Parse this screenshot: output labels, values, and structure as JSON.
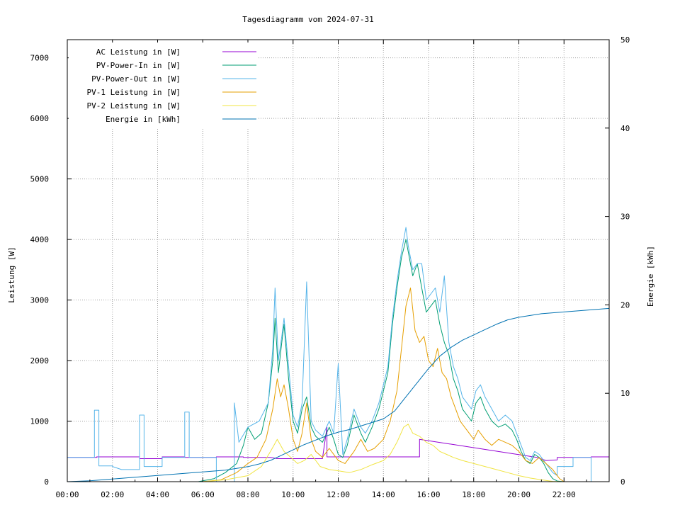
{
  "chart_data": {
    "type": "line",
    "title": "Tagesdiagramm vom 2024-07-31",
    "ylabel": "Leistung [W]",
    "y2label": "Energie [kWh]",
    "xlabel": "",
    "xlim": [
      0,
      24
    ],
    "ylim": [
      0,
      7300
    ],
    "y2lim": [
      0,
      50
    ],
    "grid": true,
    "legend_position": "top-left",
    "x_ticks": [
      "00:00",
      "02:00",
      "04:00",
      "06:00",
      "08:00",
      "10:00",
      "12:00",
      "14:00",
      "16:00",
      "18:00",
      "20:00",
      "22:00"
    ],
    "y_ticks": [
      "0",
      "1000",
      "2000",
      "3000",
      "4000",
      "5000",
      "6000",
      "7000"
    ],
    "y2_ticks": [
      "0",
      "10",
      "20",
      "30",
      "40",
      "50"
    ],
    "series": [
      {
        "name": "AC Leistung in [W]",
        "color": "#9400d3",
        "axis": "y",
        "x": [
          0,
          1.3,
          1.3,
          3.2,
          3.2,
          4.2,
          4.2,
          5.2,
          5.2,
          6.6,
          6.6,
          7.8,
          7.8,
          9.0,
          9.3,
          11.3,
          11.5,
          11.5,
          15.6,
          15.6,
          20.8,
          21.2,
          21.7,
          21.7,
          23.2,
          23.2,
          24
        ],
        "y": [
          400,
          400,
          410,
          410,
          380,
          380,
          410,
          410,
          400,
          400,
          410,
          410,
          400,
          400,
          380,
          380,
          900,
          410,
          410,
          700,
          400,
          350,
          360,
          400,
          400,
          410,
          410
        ]
      },
      {
        "name": "PV-Power-In in [W]",
        "color": "#009e73",
        "axis": "y",
        "x": [
          0,
          5.8,
          6.5,
          7.0,
          7.5,
          7.8,
          8.0,
          8.3,
          8.6,
          8.9,
          9.1,
          9.2,
          9.35,
          9.5,
          9.6,
          9.8,
          10.0,
          10.2,
          10.4,
          10.6,
          10.8,
          11.0,
          11.3,
          11.6,
          11.8,
          12.0,
          12.2,
          12.4,
          12.7,
          13.0,
          13.2,
          13.5,
          13.8,
          14.0,
          14.2,
          14.4,
          14.6,
          14.8,
          15.0,
          15.1,
          15.3,
          15.5,
          15.7,
          15.9,
          16.1,
          16.3,
          16.5,
          16.7,
          16.9,
          17.1,
          17.3,
          17.5,
          17.7,
          17.9,
          18.1,
          18.3,
          18.5,
          18.8,
          19.1,
          19.4,
          19.7,
          19.9,
          20.1,
          20.3,
          20.5,
          20.7,
          20.9,
          21.1,
          21.3,
          21.5,
          21.7,
          22.0
        ],
        "y": [
          0,
          0,
          50,
          150,
          300,
          600,
          900,
          700,
          800,
          1300,
          2000,
          2700,
          1800,
          2300,
          2600,
          1700,
          1000,
          800,
          1200,
          1400,
          900,
          750,
          650,
          900,
          700,
          450,
          400,
          600,
          1100,
          800,
          650,
          900,
          1200,
          1500,
          1800,
          2600,
          3200,
          3700,
          4000,
          3800,
          3400,
          3600,
          3200,
          2800,
          2900,
          3000,
          2600,
          2300,
          2100,
          1700,
          1500,
          1200,
          1100,
          1000,
          1300,
          1400,
          1200,
          1000,
          900,
          950,
          850,
          700,
          500,
          350,
          300,
          450,
          400,
          300,
          150,
          50,
          10,
          0
        ]
      },
      {
        "name": "PV-Power-Out in [W]",
        "color": "#56b4e9",
        "axis": "y",
        "x": [
          0,
          1.2,
          1.2,
          1.4,
          1.4,
          2.0,
          2.0,
          2.4,
          3.2,
          3.2,
          3.4,
          3.4,
          4.2,
          4.2,
          5.2,
          5.2,
          5.4,
          5.4,
          6.6,
          6.6,
          7.4,
          7.4,
          7.6,
          8.0,
          8.5,
          8.9,
          9.1,
          9.2,
          9.35,
          9.5,
          9.6,
          9.8,
          10.0,
          10.2,
          10.4,
          10.6,
          10.8,
          11.0,
          11.3,
          11.6,
          11.8,
          12.0,
          12.2,
          12.4,
          12.7,
          13.0,
          13.2,
          13.5,
          13.8,
          14.0,
          14.2,
          14.4,
          14.6,
          14.8,
          15.0,
          15.1,
          15.3,
          15.5,
          15.7,
          15.9,
          16.1,
          16.3,
          16.5,
          16.7,
          16.9,
          17.1,
          17.3,
          17.5,
          17.7,
          17.9,
          18.1,
          18.3,
          18.5,
          18.8,
          19.1,
          19.4,
          19.7,
          19.9,
          20.1,
          20.3,
          20.5,
          20.7,
          20.9,
          21.1,
          21.3,
          21.5,
          21.7,
          21.7,
          22.4,
          22.4,
          23.2,
          23.2,
          24
        ],
        "y": [
          400,
          400,
          1180,
          1180,
          260,
          260,
          250,
          200,
          200,
          1100,
          1100,
          250,
          250,
          400,
          400,
          1150,
          1150,
          400,
          400,
          0,
          0,
          1300,
          650,
          900,
          1000,
          1300,
          2200,
          3200,
          2000,
          2400,
          2700,
          1900,
          1100,
          900,
          1300,
          3300,
          1000,
          850,
          750,
          1000,
          800,
          1950,
          450,
          700,
          1200,
          900,
          800,
          1000,
          1300,
          1600,
          1900,
          2700,
          3300,
          3800,
          4200,
          3900,
          3500,
          3600,
          3600,
          3000,
          3100,
          3200,
          2800,
          3400,
          2300,
          1900,
          1700,
          1400,
          1300,
          1200,
          1500,
          1600,
          1400,
          1200,
          1000,
          1100,
          1000,
          800,
          600,
          400,
          350,
          500,
          450,
          350,
          250,
          150,
          100,
          250,
          250,
          400,
          400,
          0,
          0
        ]
      },
      {
        "name": "PV-1 Leistung in [W]",
        "color": "#e69f00",
        "axis": "y",
        "x": [
          0,
          6.0,
          6.8,
          7.5,
          8.0,
          8.4,
          8.8,
          9.1,
          9.3,
          9.45,
          9.6,
          9.8,
          10.0,
          10.2,
          10.4,
          10.6,
          10.8,
          11.0,
          11.3,
          11.6,
          12.0,
          12.3,
          12.7,
          13.0,
          13.3,
          13.6,
          14.0,
          14.3,
          14.6,
          14.8,
          15.0,
          15.2,
          15.4,
          15.6,
          15.8,
          16.0,
          16.2,
          16.4,
          16.6,
          16.8,
          17.0,
          17.2,
          17.4,
          17.6,
          17.8,
          18.0,
          18.2,
          18.5,
          18.8,
          19.1,
          19.4,
          19.7,
          20.0,
          20.3,
          20.6,
          20.9,
          21.2,
          21.5,
          21.8,
          22.0
        ],
        "y": [
          0,
          0,
          30,
          150,
          300,
          400,
          700,
          1200,
          1700,
          1400,
          1600,
          1200,
          700,
          500,
          800,
          1300,
          700,
          500,
          400,
          550,
          350,
          300,
          500,
          700,
          500,
          550,
          700,
          1000,
          1500,
          2200,
          2900,
          3200,
          2500,
          2300,
          2400,
          2000,
          1900,
          2200,
          1800,
          1700,
          1400,
          1200,
          1000,
          900,
          800,
          700,
          850,
          700,
          600,
          700,
          650,
          600,
          500,
          350,
          300,
          400,
          300,
          200,
          50,
          0
        ]
      },
      {
        "name": "PV-2 Leistung in [W]",
        "color": "#f0e442",
        "axis": "y",
        "x": [
          0,
          6.0,
          7.0,
          8.0,
          8.6,
          9.0,
          9.3,
          9.6,
          9.9,
          10.2,
          10.5,
          10.8,
          11.2,
          11.6,
          12.0,
          12.5,
          13.0,
          13.5,
          14.0,
          14.3,
          14.6,
          14.9,
          15.1,
          15.3,
          15.6,
          15.9,
          16.2,
          16.5,
          16.8,
          17.1,
          17.5,
          18.0,
          18.5,
          19.0,
          19.5,
          20.0,
          20.5,
          21.0,
          21.5,
          22.0
        ],
        "y": [
          0,
          0,
          30,
          100,
          250,
          500,
          700,
          500,
          400,
          300,
          350,
          450,
          250,
          200,
          180,
          150,
          200,
          280,
          350,
          450,
          650,
          900,
          950,
          800,
          750,
          650,
          600,
          500,
          450,
          400,
          350,
          300,
          250,
          200,
          150,
          100,
          60,
          30,
          5,
          0
        ]
      },
      {
        "name": "Energie in [kWh]",
        "color": "#0072b2",
        "axis": "y2",
        "x": [
          0,
          1,
          2,
          3,
          4,
          5,
          6,
          6.5,
          7,
          7.5,
          8,
          8.5,
          9,
          9.5,
          10,
          10.5,
          11,
          11.5,
          12,
          12.5,
          13,
          13.5,
          14,
          14.5,
          15,
          15.5,
          16,
          16.5,
          17,
          17.5,
          18,
          18.5,
          19,
          19.5,
          20,
          20.5,
          21,
          21.5,
          22,
          23,
          24
        ],
        "y": [
          0,
          0.1,
          0.3,
          0.5,
          0.7,
          0.9,
          1.1,
          1.2,
          1.3,
          1.5,
          1.7,
          2.0,
          2.4,
          3.0,
          3.6,
          4.2,
          4.7,
          5.2,
          5.6,
          5.9,
          6.3,
          6.7,
          7.1,
          8.0,
          9.6,
          11.2,
          12.8,
          14.2,
          15.2,
          16.0,
          16.6,
          17.2,
          17.8,
          18.3,
          18.6,
          18.8,
          19.0,
          19.1,
          19.2,
          19.4,
          19.6
        ]
      }
    ]
  }
}
